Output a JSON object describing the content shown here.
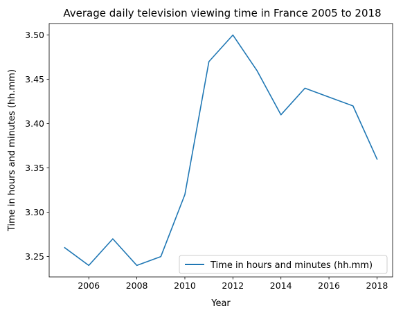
{
  "chart_data": {
    "type": "line",
    "title": "Average daily television viewing time in France 2005 to 2018",
    "xlabel": "Year",
    "ylabel": "Time in hours and minutes (hh.mm)",
    "x": [
      2005,
      2006,
      2007,
      2008,
      2009,
      2010,
      2011,
      2012,
      2013,
      2014,
      2015,
      2016,
      2017,
      2018
    ],
    "series": [
      {
        "name": "Time in hours and minutes (hh.mm)",
        "color": "#1f77b4",
        "values": [
          3.26,
          3.24,
          3.27,
          3.24,
          3.25,
          3.32,
          3.47,
          3.5,
          3.46,
          3.41,
          3.44,
          3.43,
          3.42,
          3.36
        ]
      }
    ],
    "xlim": [
      2004.35,
      2018.65
    ],
    "ylim": [
      3.227,
      3.513
    ],
    "xticks": [
      2006,
      2008,
      2010,
      2012,
      2014,
      2016,
      2018
    ],
    "xtick_labels": [
      "2006",
      "2008",
      "2010",
      "2012",
      "2014",
      "2016",
      "2018"
    ],
    "yticks": [
      3.25,
      3.3,
      3.35,
      3.4,
      3.45,
      3.5
    ],
    "ytick_labels": [
      "3.25",
      "3.30",
      "3.35",
      "3.40",
      "3.45",
      "3.50"
    ],
    "grid": false,
    "legend_position": "lower right"
  }
}
